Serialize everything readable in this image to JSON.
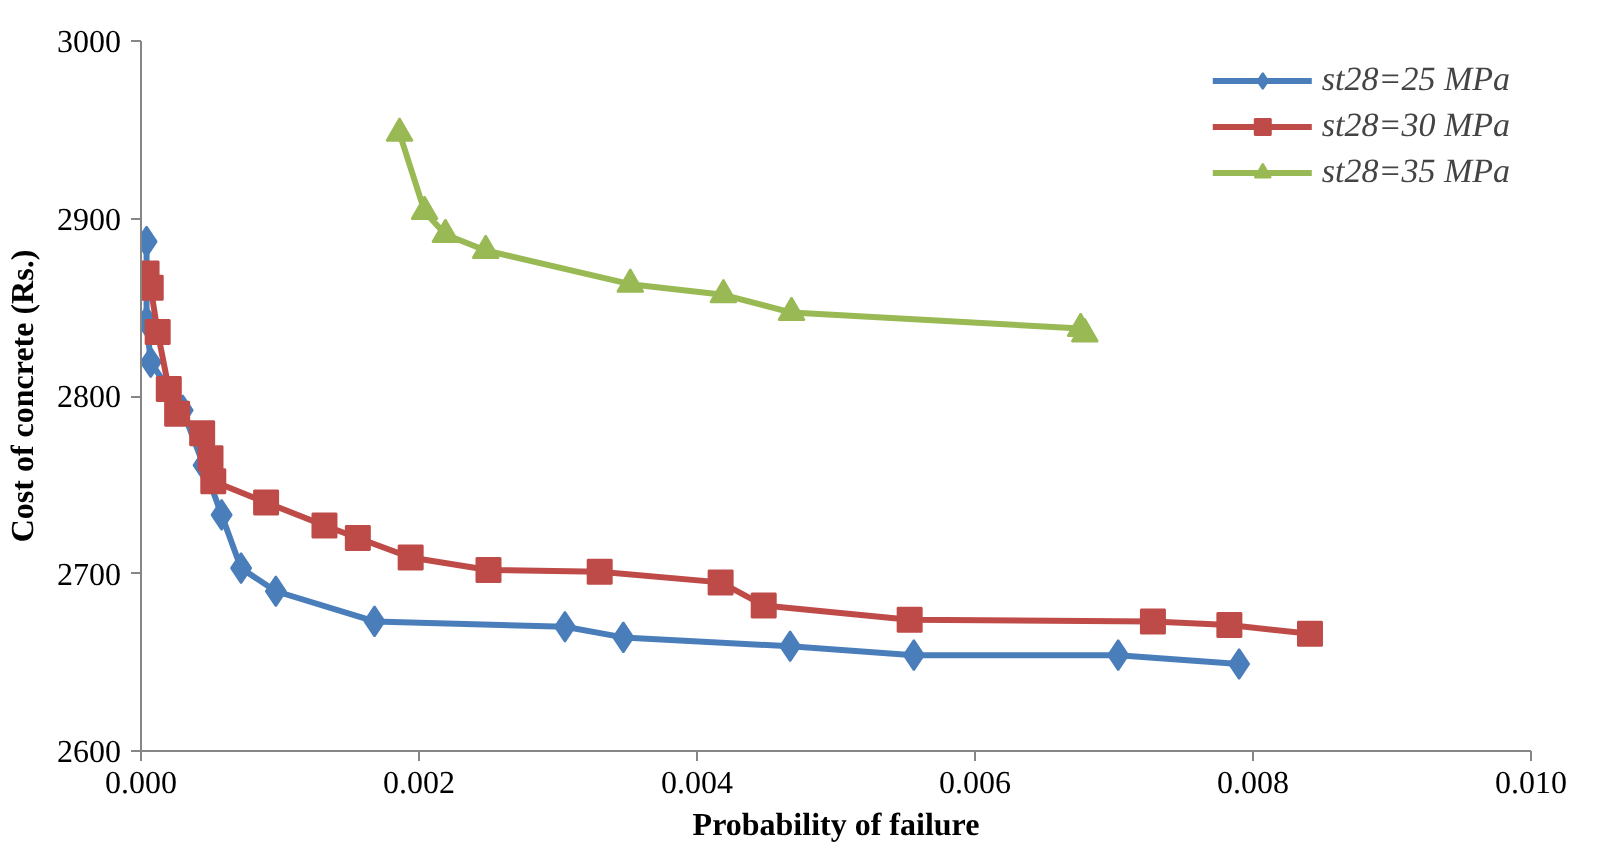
{
  "chart_data": {
    "type": "line",
    "xlabel": "Probability of failure",
    "ylabel": "Cost of concrete (Rs.)",
    "xlim": [
      0,
      0.01
    ],
    "ylim": [
      2600,
      3000
    ],
    "xticks": [
      {
        "value": 0,
        "label": "0.000"
      },
      {
        "value": 0.002,
        "label": "0.002"
      },
      {
        "value": 0.004,
        "label": "0.004"
      },
      {
        "value": 0.006,
        "label": "0.006"
      },
      {
        "value": 0.008,
        "label": "0.008"
      },
      {
        "value": 0.01,
        "label": "0.010"
      }
    ],
    "yticks": [
      2600,
      2700,
      2800,
      2900,
      3000
    ],
    "grid": false,
    "legend": "top right",
    "line_style": "solid",
    "series": [
      {
        "name": "st28=25 MPa",
        "color": "#4a7ebb",
        "marker": "diamond",
        "x": [
          4e-05,
          4e-05,
          7e-05,
          0.0003,
          0.00045,
          0.00058,
          0.00072,
          0.00097,
          0.00168,
          0.00305,
          0.00347,
          0.00467,
          0.00556,
          0.00703,
          0.0079
        ],
        "values": [
          2887,
          2842,
          2819,
          2792,
          2761,
          2733,
          2703,
          2690,
          2673,
          2670,
          2664,
          2659,
          2654,
          2654,
          2649
        ]
      },
      {
        "name": "st28=30 MPa",
        "color": "#be4b48",
        "marker": "square",
        "x": [
          4e-05,
          7e-05,
          0.00012,
          0.0002,
          0.00026,
          0.00044,
          0.0005,
          0.00052,
          0.0009,
          0.00132,
          0.00156,
          0.00194,
          0.0025,
          0.0033,
          0.00417,
          0.00448,
          0.00553,
          0.00728,
          0.00783,
          0.00841
        ],
        "values": [
          2869,
          2861,
          2836,
          2804,
          2790,
          2779,
          2765,
          2752,
          2740,
          2727,
          2720,
          2709,
          2702,
          2701,
          2695,
          2682,
          2674,
          2673,
          2671,
          2666
        ]
      },
      {
        "name": "st28=35 MPa",
        "color": "#98b954",
        "marker": "triangle",
        "x": [
          0.00186,
          0.00204,
          0.00219,
          0.00248,
          0.00352,
          0.00419,
          0.00468,
          0.00676,
          0.00679
        ],
        "values": [
          2948,
          2904,
          2891,
          2882,
          2863,
          2857,
          2847,
          2838,
          2835
        ]
      }
    ]
  }
}
